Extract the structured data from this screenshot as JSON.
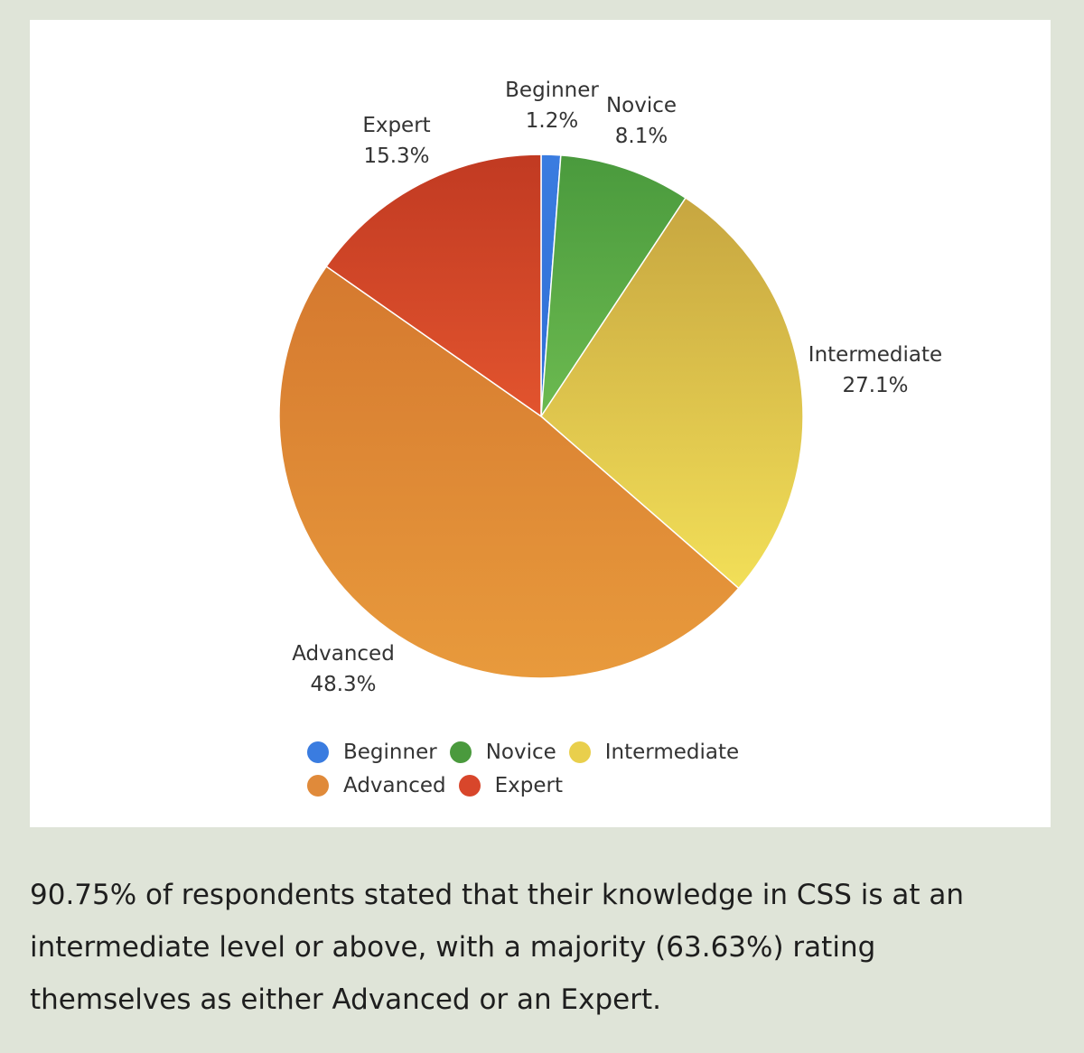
{
  "chart_data": {
    "type": "pie",
    "title": "",
    "slices": [
      {
        "name": "Beginner",
        "value": 1.2,
        "label": "1.2%",
        "color": "#3a7ce0",
        "gradient_end": "#2f6fd6"
      },
      {
        "name": "Novice",
        "value": 8.1,
        "label": "8.1%",
        "color": "#4a9a3d",
        "gradient_end": "#6cba50"
      },
      {
        "name": "Intermediate",
        "value": 27.1,
        "label": "27.1%",
        "color": "#c7a640",
        "gradient_end": "#f2df58"
      },
      {
        "name": "Advanced",
        "value": 48.3,
        "label": "48.3%",
        "color": "#d5792f",
        "gradient_end": "#e89a3c"
      },
      {
        "name": "Expert",
        "value": 15.3,
        "label": "15.3%",
        "color": "#c13a22",
        "gradient_end": "#e2542e"
      }
    ],
    "legend": {
      "placement": "bottom-center",
      "rows": [
        [
          {
            "name": "Beginner",
            "color": "#3a7ce0"
          },
          {
            "name": "Novice",
            "color": "#4a9a3d"
          },
          {
            "name": "Intermediate",
            "color": "#e9cf4c"
          }
        ],
        [
          {
            "name": "Advanced",
            "color": "#e08a3a"
          },
          {
            "name": "Expert",
            "color": "#d8462b"
          }
        ]
      ]
    }
  },
  "caption": "90.75% of respondents stated that their knowledge in CSS is at an intermediate level or above, with a majority (63.63%) rating themselves as either Advanced or an Expert."
}
